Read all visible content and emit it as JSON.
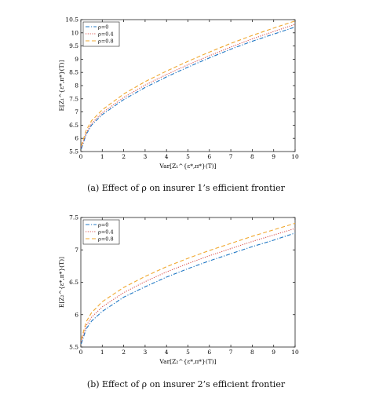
{
  "figure": {
    "caption_a": "(a) Effect of ρ on insurer 1’s efficient frontier",
    "caption_b": "(b) Effect of ρ on insurer 2’s efficient frontier"
  },
  "chart_data": [
    {
      "type": "line",
      "title": "",
      "xlabel": "Var[Z₁^{ε*,π*}(T)]",
      "ylabel": "E[Z₁^{ε*,π*}(T)]",
      "xlim": [
        0,
        10
      ],
      "ylim": [
        5.5,
        10.5
      ],
      "xticks": [
        0,
        1,
        2,
        3,
        4,
        5,
        6,
        7,
        8,
        9,
        10
      ],
      "yticks": [
        5.5,
        6,
        6.5,
        7,
        7.5,
        8,
        8.5,
        9,
        9.5,
        10,
        10.5
      ],
      "legend_position": "top-left",
      "grid": false,
      "x": [
        0.02,
        0.25,
        0.5,
        1,
        2,
        3,
        4,
        5,
        6,
        7,
        8,
        9,
        10
      ],
      "series": [
        {
          "name": "ρ=0",
          "color": "#1f77c4",
          "dash": "dashdot",
          "values": [
            5.6,
            6.15,
            6.5,
            6.9,
            7.47,
            7.93,
            8.33,
            8.7,
            9.05,
            9.38,
            9.68,
            9.95,
            10.22
          ]
        },
        {
          "name": "ρ=0.4",
          "color": "#d9534f",
          "dash": "dotted",
          "values": [
            5.65,
            6.2,
            6.56,
            6.97,
            7.55,
            8.02,
            8.42,
            8.79,
            9.13,
            9.46,
            9.77,
            10.05,
            10.32
          ]
        },
        {
          "name": "ρ=0.8",
          "color": "#f0a830",
          "dash": "dashed",
          "values": [
            5.72,
            6.3,
            6.67,
            7.08,
            7.68,
            8.15,
            8.55,
            8.92,
            9.27,
            9.6,
            9.9,
            10.18,
            10.45
          ]
        }
      ]
    },
    {
      "type": "line",
      "title": "",
      "xlabel": "Var[Z₂^{ε*,π*}(T)]",
      "ylabel": "E[Z₂^{ε*,π*}(T)]",
      "xlim": [
        0,
        10
      ],
      "ylim": [
        5.5,
        7.5
      ],
      "xticks": [
        0,
        1,
        2,
        3,
        4,
        5,
        6,
        7,
        8,
        9,
        10
      ],
      "yticks": [
        5.5,
        6,
        6.5,
        7,
        7.5
      ],
      "legend_position": "top-left",
      "grid": false,
      "x": [
        0.02,
        0.25,
        0.5,
        1,
        2,
        3,
        4,
        5,
        6,
        7,
        8,
        9,
        10
      ],
      "series": [
        {
          "name": "ρ=0",
          "color": "#1f77c4",
          "dash": "dashdot",
          "values": [
            5.55,
            5.78,
            5.9,
            6.05,
            6.27,
            6.43,
            6.58,
            6.71,
            6.83,
            6.94,
            7.05,
            7.15,
            7.26
          ]
        },
        {
          "name": "ρ=0.4",
          "color": "#d9534f",
          "dash": "dotted",
          "values": [
            5.58,
            5.83,
            5.96,
            6.12,
            6.34,
            6.51,
            6.66,
            6.79,
            6.91,
            7.02,
            7.13,
            7.23,
            7.33
          ]
        },
        {
          "name": "ρ=0.8",
          "color": "#f0a830",
          "dash": "dashed",
          "values": [
            5.62,
            5.89,
            6.03,
            6.2,
            6.42,
            6.59,
            6.74,
            6.87,
            6.99,
            7.1,
            7.21,
            7.31,
            7.41
          ]
        }
      ]
    }
  ]
}
